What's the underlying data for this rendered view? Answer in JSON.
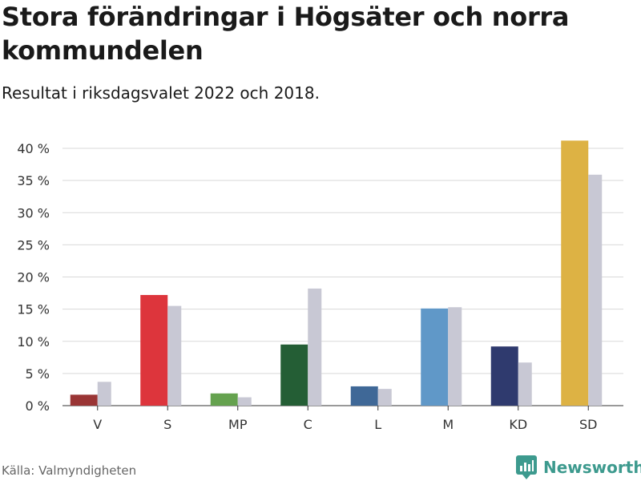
{
  "title": "Stora förändringar i Högsäter och norra kommundelen",
  "subtitle": "Resultat i riksdagsvalet 2022 och 2018.",
  "source": "Källa: Valmyndigheten",
  "brand": {
    "name": "Newsworthy",
    "icon": "newsworthy-logo-icon",
    "color": "#3d9a8e"
  },
  "chart_data": {
    "type": "bar",
    "title": "Stora förändringar i Högsäter och norra kommundelen",
    "subtitle": "Resultat i riksdagsvalet 2022 och 2018.",
    "categories": [
      "V",
      "S",
      "MP",
      "C",
      "L",
      "M",
      "KD",
      "SD"
    ],
    "series": [
      {
        "name": "2022",
        "values": [
          1.7,
          17.2,
          1.9,
          9.5,
          3.0,
          15.1,
          9.2,
          41.2
        ],
        "colors": [
          "#9a3535",
          "#dd353c",
          "#65a24f",
          "#245e35",
          "#3f6897",
          "#6098c8",
          "#2f3a6e",
          "#ddb244"
        ]
      },
      {
        "name": "2018",
        "values": [
          3.7,
          15.5,
          1.3,
          18.2,
          2.6,
          15.3,
          6.7,
          35.9
        ],
        "color": "#c8c8d4"
      }
    ],
    "yticks": [
      0,
      5,
      10,
      15,
      20,
      25,
      30,
      35,
      40
    ],
    "ytick_labels": [
      "0 %",
      "5 %",
      "10 %",
      "15 %",
      "20 %",
      "25 %",
      "30 %",
      "35 %",
      "40 %"
    ],
    "ylim": [
      0,
      42
    ],
    "xlabel": "",
    "ylabel": "",
    "grid": true,
    "legend": "none"
  }
}
